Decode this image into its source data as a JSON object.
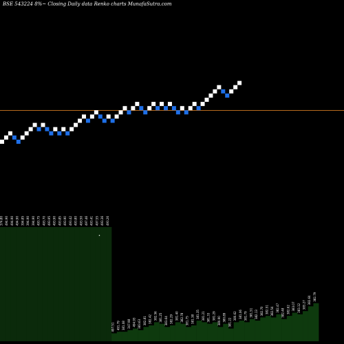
{
  "chart_data": {
    "type": "renko",
    "title": "BSE 543224  8%~  Closing Daily data  Renko  charts MunafaSutra.com",
    "colors": {
      "background": "#000000",
      "up_brick": "#ffffff",
      "down_brick": "#1e6fe8",
      "reference_line": "#b86a1e",
      "volume_fill": "#0b2a0b",
      "volume_tail": "#0e3a0e",
      "label": "#ffffff"
    },
    "bricks": [
      {
        "dir": "up",
        "level": 0
      },
      {
        "dir": "up",
        "level": 1
      },
      {
        "dir": "up",
        "level": 2
      },
      {
        "dir": "down",
        "level": 1
      },
      {
        "dir": "down",
        "level": 0
      },
      {
        "dir": "up",
        "level": 1
      },
      {
        "dir": "up",
        "level": 2
      },
      {
        "dir": "up",
        "level": 3
      },
      {
        "dir": "up",
        "level": 4
      },
      {
        "dir": "down",
        "level": 3
      },
      {
        "dir": "up",
        "level": 4
      },
      {
        "dir": "down",
        "level": 3
      },
      {
        "dir": "down",
        "level": 2
      },
      {
        "dir": "up",
        "level": 3
      },
      {
        "dir": "down",
        "level": 2
      },
      {
        "dir": "up",
        "level": 3
      },
      {
        "dir": "down",
        "level": 2
      },
      {
        "dir": "up",
        "level": 3
      },
      {
        "dir": "up",
        "level": 4
      },
      {
        "dir": "up",
        "level": 5
      },
      {
        "dir": "up",
        "level": 6
      },
      {
        "dir": "down",
        "level": 5
      },
      {
        "dir": "up",
        "level": 6
      },
      {
        "dir": "up",
        "level": 7
      },
      {
        "dir": "down",
        "level": 6
      },
      {
        "dir": "down",
        "level": 5
      },
      {
        "dir": "up",
        "level": 6
      },
      {
        "dir": "down",
        "level": 5
      },
      {
        "dir": "up",
        "level": 6
      },
      {
        "dir": "up",
        "level": 7
      },
      {
        "dir": "up",
        "level": 8
      },
      {
        "dir": "down",
        "level": 7
      },
      {
        "dir": "up",
        "level": 8
      },
      {
        "dir": "up",
        "level": 9
      },
      {
        "dir": "down",
        "level": 8
      },
      {
        "dir": "down",
        "level": 7
      },
      {
        "dir": "up",
        "level": 8
      },
      {
        "dir": "up",
        "level": 9
      },
      {
        "dir": "down",
        "level": 8
      },
      {
        "dir": "up",
        "level": 9
      },
      {
        "dir": "down",
        "level": 8
      },
      {
        "dir": "up",
        "level": 9
      },
      {
        "dir": "down",
        "level": 8
      },
      {
        "dir": "down",
        "level": 7
      },
      {
        "dir": "up",
        "level": 8
      },
      {
        "dir": "down",
        "level": 7
      },
      {
        "dir": "up",
        "level": 8
      },
      {
        "dir": "up",
        "level": 9
      },
      {
        "dir": "down",
        "level": 8
      },
      {
        "dir": "up",
        "level": 9
      },
      {
        "dir": "up",
        "level": 10
      },
      {
        "dir": "up",
        "level": 11
      },
      {
        "dir": "up",
        "level": 12
      },
      {
        "dir": "up",
        "level": 13
      },
      {
        "dir": "down",
        "level": 12
      },
      {
        "dir": "down",
        "level": 11
      },
      {
        "dir": "up",
        "level": 12
      },
      {
        "dir": "up",
        "level": 13
      },
      {
        "dir": "up",
        "level": 14
      }
    ],
    "reference_level": 7.7,
    "volume": [
      {
        "value": 0.72,
        "label": "374.80"
      },
      {
        "value": 0.72,
        "label": "494.90"
      },
      {
        "value": 0.72,
        "label": "494.90"
      },
      {
        "value": 0.72,
        "label": "494.90"
      },
      {
        "value": 0.72,
        "label": "394.85"
      },
      {
        "value": 0.72,
        "label": "394.90"
      },
      {
        "value": 0.72,
        "label": "394.90"
      },
      {
        "value": 0.72,
        "label": "493.75"
      },
      {
        "value": 0.72,
        "label": "493.70"
      },
      {
        "value": 0.72,
        "label": "493.95"
      },
      {
        "value": 0.72,
        "label": "493.90"
      },
      {
        "value": 0.72,
        "label": "493.85"
      },
      {
        "value": 0.72,
        "label": "493.90"
      },
      {
        "value": 0.72,
        "label": "493.42"
      },
      {
        "value": 0.72,
        "label": "493.80"
      },
      {
        "value": 0.72,
        "label": "493.50"
      },
      {
        "value": 0.72,
        "label": "497.46"
      },
      {
        "value": 0.72,
        "label": "493.41"
      },
      {
        "value": 0.72,
        "label": "497.55"
      },
      {
        "value": 0.72,
        "label": "493.36"
      },
      {
        "value": 0.72,
        "label": "493.26"
      },
      {
        "value": 0.05,
        "label": "497.51"
      },
      {
        "value": 0.06,
        "label": "491.79"
      },
      {
        "value": 0.06,
        "label": "381.08"
      },
      {
        "value": 0.07,
        "label": "347.98"
      },
      {
        "value": 0.08,
        "label": "494.93"
      },
      {
        "value": 0.07,
        "label": "383.63"
      },
      {
        "value": 0.09,
        "label": "382.81"
      },
      {
        "value": 0.1,
        "label": "382.42"
      },
      {
        "value": 0.12,
        "label": "382.56"
      },
      {
        "value": 0.11,
        "label": "381.25"
      },
      {
        "value": 0.09,
        "label": "383.64"
      },
      {
        "value": 0.1,
        "label": "382.29"
      },
      {
        "value": 0.12,
        "label": "381.40"
      },
      {
        "value": 0.11,
        "label": "382.78"
      },
      {
        "value": 0.09,
        "label": "381.75"
      },
      {
        "value": 0.1,
        "label": "381.38"
      },
      {
        "value": 0.13,
        "label": "381.35"
      },
      {
        "value": 0.12,
        "label": "381.21"
      },
      {
        "value": 0.11,
        "label": "381.33"
      },
      {
        "value": 0.12,
        "label": "381.29"
      },
      {
        "value": 0.09,
        "label": "380.90"
      },
      {
        "value": 0.11,
        "label": "380.89"
      },
      {
        "value": 0.08,
        "label": "381.22"
      },
      {
        "value": 0.12,
        "label": "380.62"
      },
      {
        "value": 0.13,
        "label": "381.06"
      },
      {
        "value": 0.12,
        "label": "381.79"
      },
      {
        "value": 0.14,
        "label": "381.51"
      },
      {
        "value": 0.13,
        "label": "382.13"
      },
      {
        "value": 0.15,
        "label": "382.70"
      },
      {
        "value": 0.16,
        "label": "382.51"
      },
      {
        "value": 0.15,
        "label": "382.54"
      },
      {
        "value": 0.17,
        "label": "382.47"
      },
      {
        "value": 0.14,
        "label": "382.48"
      },
      {
        "value": 0.16,
        "label": "382.62"
      },
      {
        "value": 0.18,
        "label": "383.07"
      },
      {
        "value": 0.17,
        "label": "383.12"
      },
      {
        "value": 0.19,
        "label": "383.27"
      },
      {
        "value": 0.22,
        "label": "382.64"
      },
      {
        "value": 0.24,
        "label": "382.79"
      }
    ],
    "marker_label": "•"
  }
}
